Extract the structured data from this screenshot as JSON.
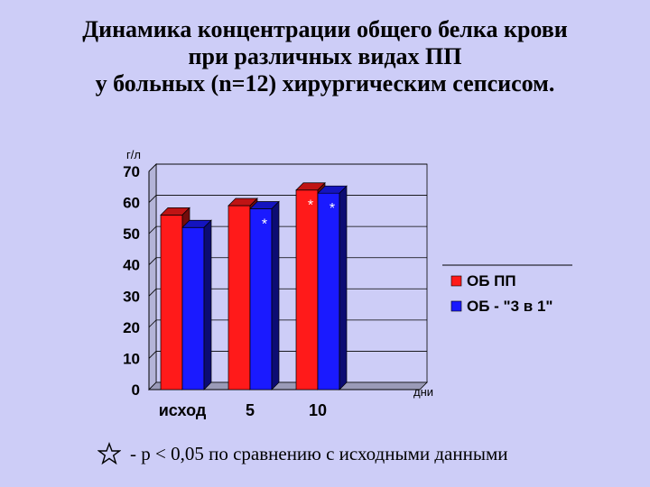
{
  "title_lines": [
    "Динамика концентрации общего белка крови",
    "при различных видах ПП",
    "у больных (n=12) хирургическим сепсисом."
  ],
  "footnote": "- p < 0,05 по сравнению с исходными данными",
  "icons": {
    "footnote_marker": "star-outline-icon"
  },
  "colors": {
    "background": "#cdcdf7",
    "series_1": "#ff1a1a",
    "series_2": "#1a1aff"
  },
  "chart_data": {
    "type": "bar",
    "categories": [
      "исход",
      "5",
      "10"
    ],
    "series": [
      {
        "name": "ОБ ПП",
        "values": [
          56,
          59,
          64
        ]
      },
      {
        "name": "ОБ - \"3 в 1\"",
        "values": [
          52,
          58,
          63
        ]
      }
    ],
    "significance": [
      {
        "series": 1,
        "category": 1,
        "label": "*"
      },
      {
        "series": 0,
        "category": 2,
        "label": "*"
      },
      {
        "series": 1,
        "category": 2,
        "label": "*"
      }
    ],
    "ylabel": "г/л",
    "xlabel": "дни",
    "ylim": [
      0,
      70
    ],
    "yticks": [
      0,
      10,
      20,
      30,
      40,
      50,
      60,
      70
    ],
    "grid": true,
    "legend_position": "right"
  }
}
